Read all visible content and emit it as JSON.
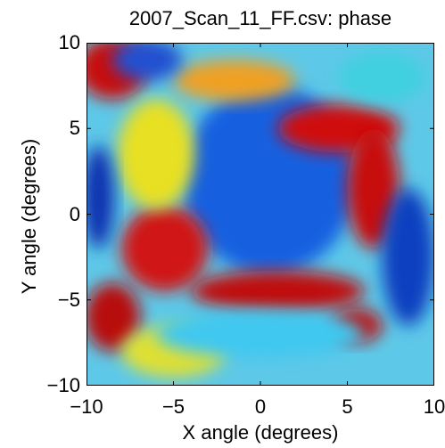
{
  "chart_data": {
    "type": "heatmap",
    "title": "2007_Scan_11_FF.csv: phase",
    "xlabel": "X angle (degrees)",
    "ylabel": "Y angle (degrees)",
    "xlim": [
      -10,
      10
    ],
    "ylim": [
      -10,
      10
    ],
    "xticks": [
      -10,
      -5,
      0,
      5,
      10
    ],
    "yticks": [
      -10,
      -5,
      0,
      5,
      10
    ],
    "xtick_labels": [
      "−10",
      "−5",
      "0",
      "5",
      "10"
    ],
    "ytick_labels": [
      "−10",
      "−5",
      "0",
      "5",
      "10"
    ],
    "colormap": "jet",
    "regions": [
      {
        "name": "central-disk",
        "x": 0.5,
        "y": 2.0,
        "rx": 5.0,
        "ry": 5.5,
        "color": "#1560e0"
      },
      {
        "name": "red-arc-upper-right",
        "x": 4.5,
        "y": 5.0,
        "rx": 3.5,
        "ry": 1.4,
        "color": "#d01010"
      },
      {
        "name": "red-arc-right",
        "x": 6.5,
        "y": 1.5,
        "rx": 1.5,
        "ry": 3.5,
        "color": "#c81010"
      },
      {
        "name": "red-arc-left",
        "x": -5.5,
        "y": -2.0,
        "rx": 2.5,
        "ry": 2.5,
        "color": "#d01515"
      },
      {
        "name": "red-arc-bottom",
        "x": 1.0,
        "y": -4.5,
        "rx": 5.0,
        "ry": 1.2,
        "color": "#c01010"
      },
      {
        "name": "red-corner-top-left",
        "x": -8.5,
        "y": 8.5,
        "rx": 2.0,
        "ry": 1.8,
        "color": "#c81010"
      },
      {
        "name": "red-corner-bottom-left",
        "x": -8.5,
        "y": -6.0,
        "rx": 1.6,
        "ry": 2.0,
        "color": "#b80d0d"
      },
      {
        "name": "red-bottom-right",
        "x": 5.5,
        "y": -6.5,
        "rx": 1.5,
        "ry": 1.0,
        "color": "#c01010"
      },
      {
        "name": "yellow-ring-left",
        "x": -6.0,
        "y": 3.5,
        "rx": 2.2,
        "ry": 3.2,
        "color": "#e8e020"
      },
      {
        "name": "yellow-bottom-left",
        "x": -5.0,
        "y": -8.0,
        "rx": 3.0,
        "ry": 1.5,
        "color": "#e0e030"
      },
      {
        "name": "orange-top",
        "x": -1.5,
        "y": 7.8,
        "rx": 3.5,
        "ry": 1.2,
        "color": "#f0a020"
      },
      {
        "name": "cyan-top-right",
        "x": 7.0,
        "y": 8.0,
        "rx": 2.5,
        "ry": 1.5,
        "color": "#40d0e0"
      },
      {
        "name": "cyan-ring-lower",
        "x": 0.0,
        "y": -7.0,
        "rx": 6.0,
        "ry": 1.4,
        "color": "#40c8f0"
      },
      {
        "name": "blue-right-band",
        "x": 8.5,
        "y": -2.5,
        "rx": 1.5,
        "ry": 4.0,
        "color": "#1040c0"
      },
      {
        "name": "blue-top-left",
        "x": -6.5,
        "y": 9.0,
        "rx": 2.0,
        "ry": 1.2,
        "color": "#2050d0"
      },
      {
        "name": "blue-left-edge",
        "x": -9.3,
        "y": 1.0,
        "rx": 0.9,
        "ry": 3.0,
        "color": "#1030b0"
      }
    ]
  }
}
